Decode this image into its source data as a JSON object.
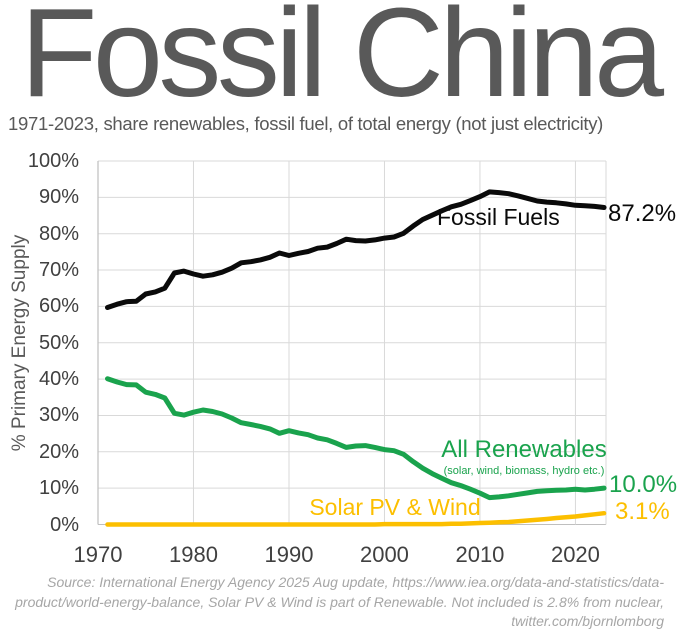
{
  "title": "Fossil China",
  "subtitle": "1971-2023, share renewables, fossil fuel, of total energy (not just electricity)",
  "footer": {
    "line1": "Source: International Energy Agency 2025 Aug update, https://www.iea.org/data-and-statistics/data-",
    "line2": "product/world-energy-balance, Solar PV & Wind is part of Renewable. Not included is 2.8% from nuclear,",
    "line3": "twitter.com/bjornlomborg"
  },
  "colors": {
    "title_gray": "#595959",
    "axis_text": "#404040",
    "gridline": "#d9d9d9",
    "axis_line": "#bfbfbf",
    "footer_text": "#a6a6a6",
    "fossil": "#0a0a0a",
    "renewables": "#1aa34d",
    "solar_wind": "#fcbf00"
  },
  "chart_data": {
    "type": "line",
    "title": "Fossil China",
    "xlabel": "",
    "ylabel": "% Primary Energy Supply",
    "grid": true,
    "legend_position": "inline-labels",
    "xlim": [
      1970,
      2023.2
    ],
    "ylim": [
      0,
      100
    ],
    "y_ticks": [
      {
        "value": 100,
        "label": "100%"
      },
      {
        "value": 90,
        "label": "90%"
      },
      {
        "value": 80,
        "label": "80%"
      },
      {
        "value": 70,
        "label": "70%"
      },
      {
        "value": 60,
        "label": "60%"
      },
      {
        "value": 50,
        "label": "50%"
      },
      {
        "value": 40,
        "label": "40%"
      },
      {
        "value": 30,
        "label": "30%"
      },
      {
        "value": 20,
        "label": "20%"
      },
      {
        "value": 10,
        "label": "10%"
      },
      {
        "value": 0,
        "label": "0%"
      }
    ],
    "x_ticks": [
      {
        "value": 1970,
        "label": "1970"
      },
      {
        "value": 1980,
        "label": "1980"
      },
      {
        "value": 1990,
        "label": "1990"
      },
      {
        "value": 2000,
        "label": "2000"
      },
      {
        "value": 2010,
        "label": "2010"
      },
      {
        "value": 2020,
        "label": "2020"
      }
    ],
    "years": [
      1971,
      1972,
      1973,
      1974,
      1975,
      1976,
      1977,
      1978,
      1979,
      1980,
      1981,
      1982,
      1983,
      1984,
      1985,
      1986,
      1987,
      1988,
      1989,
      1990,
      1991,
      1992,
      1993,
      1994,
      1995,
      1996,
      1997,
      1998,
      1999,
      2000,
      2001,
      2002,
      2003,
      2004,
      2005,
      2006,
      2007,
      2008,
      2009,
      2010,
      2011,
      2012,
      2013,
      2014,
      2015,
      2016,
      2017,
      2018,
      2019,
      2020,
      2021,
      2022,
      2023
    ],
    "series": [
      {
        "name": "fossil-fuels",
        "label": "Fossil Fuels",
        "end_label": "87.2%",
        "color": "#0a0a0a",
        "values": [
          59.7,
          60.6,
          61.3,
          61.4,
          63.4,
          64.0,
          65.0,
          69.2,
          69.7,
          68.9,
          68.3,
          68.7,
          69.4,
          70.5,
          72.0,
          72.3,
          72.8,
          73.5,
          74.7,
          74.0,
          74.6,
          75.1,
          76.0,
          76.3,
          77.3,
          78.5,
          78.1,
          78.0,
          78.3,
          78.8,
          79.1,
          80.1,
          82.1,
          83.9,
          85.1,
          86.3,
          87.4,
          88.1,
          89.1,
          90.2,
          91.5,
          91.3,
          91.0,
          90.4,
          89.7,
          89.0,
          88.7,
          88.5,
          88.2,
          87.8,
          87.7,
          87.5,
          87.2
        ]
      },
      {
        "name": "all-renewables",
        "label": "All Renewables",
        "sublabel": "(solar, wind, biomass, hydro etc.)",
        "end_label": "10.0%",
        "color": "#1aa34d",
        "values": [
          40.1,
          39.2,
          38.5,
          38.4,
          36.4,
          35.8,
          34.8,
          30.6,
          30.1,
          30.9,
          31.5,
          31.1,
          30.4,
          29.3,
          28.0,
          27.5,
          27.0,
          26.3,
          25.1,
          25.8,
          25.2,
          24.7,
          23.8,
          23.3,
          22.3,
          21.2,
          21.6,
          21.7,
          21.2,
          20.6,
          20.3,
          19.3,
          17.3,
          15.5,
          14.0,
          12.7,
          11.5,
          10.7,
          9.7,
          8.6,
          7.4,
          7.6,
          7.9,
          8.3,
          8.7,
          9.1,
          9.3,
          9.4,
          9.5,
          9.7,
          9.5,
          9.7,
          10.0
        ]
      },
      {
        "name": "solar-pv-wind",
        "label": "Solar PV & Wind",
        "end_label": "3.1%",
        "color": "#fcbf00",
        "values": [
          0,
          0,
          0,
          0,
          0,
          0,
          0,
          0,
          0,
          0,
          0,
          0,
          0,
          0,
          0,
          0,
          0,
          0,
          0,
          0,
          0,
          0,
          0,
          0,
          0,
          0,
          0,
          0,
          0,
          0.1,
          0.1,
          0.1,
          0.1,
          0.1,
          0.1,
          0.1,
          0.2,
          0.2,
          0.3,
          0.4,
          0.5,
          0.6,
          0.7,
          0.9,
          1.1,
          1.3,
          1.5,
          1.8,
          2.0,
          2.2,
          2.5,
          2.8,
          3.1
        ]
      }
    ]
  }
}
